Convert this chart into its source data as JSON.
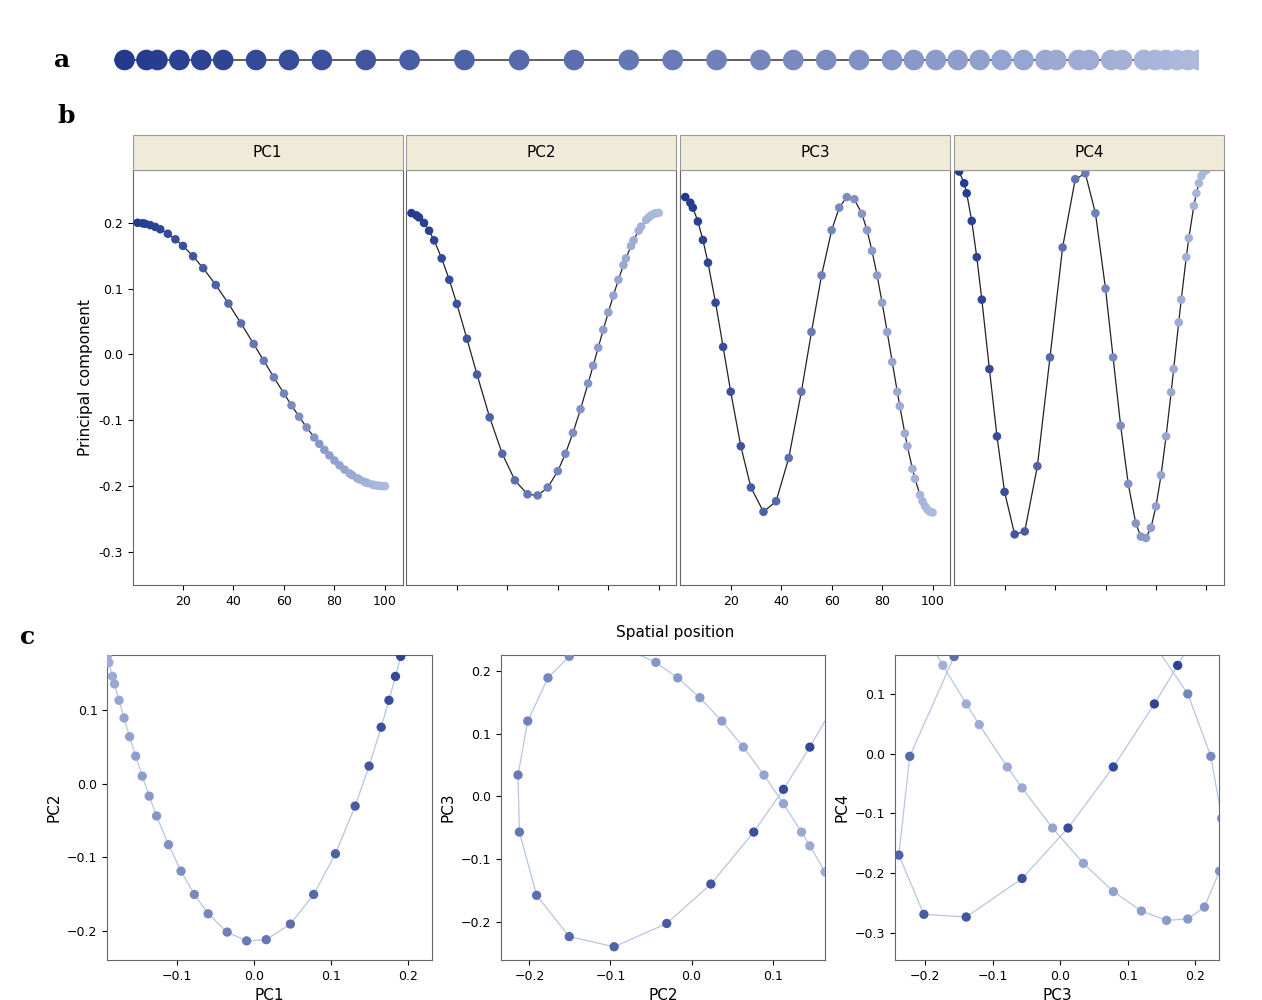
{
  "n_samples": 40,
  "panel_bg": "#f0ead8",
  "panel_label_fontsize": 18,
  "axis_label_fontsize": 11,
  "tick_fontsize": 9,
  "line_color_b": "#222222",
  "line_color_c": "#aabbdd",
  "panel_b_ylim": [
    -0.35,
    0.28
  ],
  "panel_b_yticks": [
    -0.3,
    -0.2,
    -0.1,
    0.0,
    0.1,
    0.2
  ],
  "panel_b_xticks": [
    20,
    40,
    60,
    80,
    100
  ],
  "pc_labels": [
    "PC1",
    "PC2",
    "PC3",
    "PC4"
  ],
  "biplot1_xlim": [
    -0.19,
    0.23
  ],
  "biplot1_ylim": [
    -0.24,
    0.175
  ],
  "biplot1_xticks": [
    -0.1,
    0.0,
    0.1,
    0.2
  ],
  "biplot1_yticks": [
    -0.2,
    -0.1,
    0.0,
    0.1
  ],
  "biplot2_xlim": [
    -0.235,
    0.165
  ],
  "biplot2_ylim": [
    -0.26,
    0.225
  ],
  "biplot2_xticks": [
    -0.2,
    -0.1,
    0.0,
    0.1
  ],
  "biplot2_yticks": [
    -0.2,
    -0.1,
    0.0,
    0.1,
    0.2
  ],
  "biplot3_xlim": [
    -0.245,
    0.235
  ],
  "biplot3_ylim": [
    -0.345,
    0.165
  ],
  "biplot3_xticks": [
    -0.2,
    -0.1,
    0.0,
    0.1,
    0.2
  ],
  "biplot3_yticks": [
    -0.3,
    -0.2,
    -0.1,
    0.0,
    0.1
  ]
}
